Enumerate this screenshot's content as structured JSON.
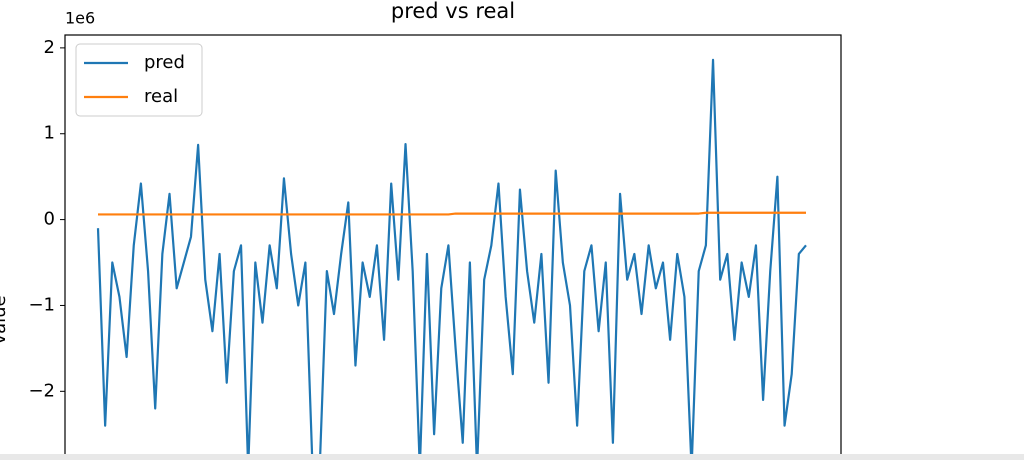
{
  "chart_data": {
    "type": "line",
    "title": "pred vs real",
    "ylabel": "value",
    "y_offset_label": "1e6",
    "ylim": [
      -2.8,
      2.15
    ],
    "yticks": [
      {
        "value": -2,
        "label": "−2"
      },
      {
        "value": -1,
        "label": "−1"
      },
      0,
      1,
      2
    ],
    "legend": "upper left",
    "series": [
      {
        "name": "pred",
        "color": "#1f77b4",
        "values": [
          -0.1,
          -2.4,
          -0.5,
          -0.9,
          -1.6,
          -0.3,
          0.42,
          -0.6,
          -2.2,
          -0.4,
          0.3,
          -0.8,
          -0.5,
          -0.2,
          0.87,
          -0.7,
          -1.3,
          -0.4,
          -1.9,
          -0.6,
          -0.3,
          -2.9,
          -0.5,
          -1.2,
          -0.3,
          -0.8,
          0.48,
          -0.4,
          -1.0,
          -0.5,
          -2.9,
          -2.9,
          -0.6,
          -1.1,
          -0.4,
          0.2,
          -1.7,
          -0.5,
          -0.9,
          -0.3,
          -1.4,
          0.42,
          -0.7,
          0.88,
          -0.6,
          -2.9,
          -0.4,
          -2.5,
          -0.8,
          -0.3,
          -1.5,
          -2.6,
          -0.5,
          -2.9,
          -0.7,
          -0.3,
          0.42,
          -0.9,
          -1.8,
          0.35,
          -0.6,
          -1.2,
          -0.4,
          -1.9,
          0.57,
          -0.5,
          -1.0,
          -2.4,
          -0.6,
          -0.3,
          -1.3,
          -0.5,
          -2.6,
          0.3,
          -0.7,
          -0.4,
          -1.1,
          -0.3,
          -0.8,
          -0.5,
          -1.4,
          -0.4,
          -0.9,
          -2.9,
          -0.6,
          -0.3,
          1.86,
          -0.7,
          -0.4,
          -1.4,
          -0.5,
          -0.9,
          -0.3,
          -2.1,
          -0.6,
          0.5,
          -2.4,
          -1.8,
          -0.4,
          -0.3
        ]
      },
      {
        "name": "real",
        "color": "#ff7f0e",
        "values": [
          0.06,
          0.06,
          0.06,
          0.06,
          0.06,
          0.06,
          0.06,
          0.06,
          0.06,
          0.06,
          0.06,
          0.06,
          0.06,
          0.06,
          0.06,
          0.06,
          0.06,
          0.06,
          0.06,
          0.06,
          0.06,
          0.06,
          0.06,
          0.06,
          0.06,
          0.06,
          0.06,
          0.06,
          0.06,
          0.06,
          0.06,
          0.06,
          0.06,
          0.06,
          0.06,
          0.06,
          0.06,
          0.06,
          0.06,
          0.06,
          0.06,
          0.06,
          0.06,
          0.06,
          0.06,
          0.06,
          0.06,
          0.06,
          0.06,
          0.06,
          0.07,
          0.07,
          0.07,
          0.07,
          0.07,
          0.07,
          0.07,
          0.07,
          0.07,
          0.07,
          0.07,
          0.07,
          0.07,
          0.07,
          0.07,
          0.07,
          0.07,
          0.07,
          0.07,
          0.07,
          0.07,
          0.07,
          0.07,
          0.07,
          0.07,
          0.07,
          0.07,
          0.07,
          0.07,
          0.07,
          0.07,
          0.07,
          0.07,
          0.07,
          0.07,
          0.08,
          0.08,
          0.08,
          0.08,
          0.08,
          0.08,
          0.08,
          0.08,
          0.08,
          0.08,
          0.08,
          0.08,
          0.08,
          0.08,
          0.08
        ]
      }
    ]
  }
}
